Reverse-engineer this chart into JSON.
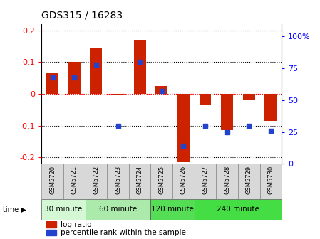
{
  "title": "GDS315 / 16283",
  "samples": [
    "GSM5720",
    "GSM5721",
    "GSM5722",
    "GSM5723",
    "GSM5724",
    "GSM5725",
    "GSM5726",
    "GSM5727",
    "GSM5728",
    "GSM5729",
    "GSM5730"
  ],
  "log_ratio": [
    0.065,
    0.1,
    0.145,
    -0.005,
    0.17,
    0.025,
    -0.215,
    -0.035,
    -0.115,
    -0.02,
    -0.085
  ],
  "percentile": [
    68,
    68,
    78,
    30,
    80,
    57,
    14,
    30,
    25,
    30,
    26
  ],
  "time_groups": [
    {
      "label": "30 minute",
      "cols": [
        0,
        1
      ],
      "color": "#d4f7d4"
    },
    {
      "label": "60 minute",
      "cols": [
        2,
        3,
        4
      ],
      "color": "#abeaab"
    },
    {
      "label": "120 minute",
      "cols": [
        5,
        6
      ],
      "color": "#55dd55"
    },
    {
      "label": "240 minute",
      "cols": [
        7,
        8,
        9,
        10
      ],
      "color": "#44dd44"
    }
  ],
  "ylim": [
    -0.22,
    0.22
  ],
  "yticks": [
    -0.2,
    -0.1,
    0.0,
    0.1,
    0.2
  ],
  "bar_color": "#cc2200",
  "dot_color": "#2244cc",
  "right_ylim": [
    0,
    110
  ],
  "right_yticks": [
    0,
    25,
    50,
    75,
    100
  ],
  "right_yticklabels": [
    "0",
    "25",
    "50",
    "75",
    "100%"
  ],
  "legend": [
    {
      "color": "#cc2200",
      "label": "log ratio"
    },
    {
      "color": "#2244cc",
      "label": "percentile rank within the sample"
    }
  ]
}
